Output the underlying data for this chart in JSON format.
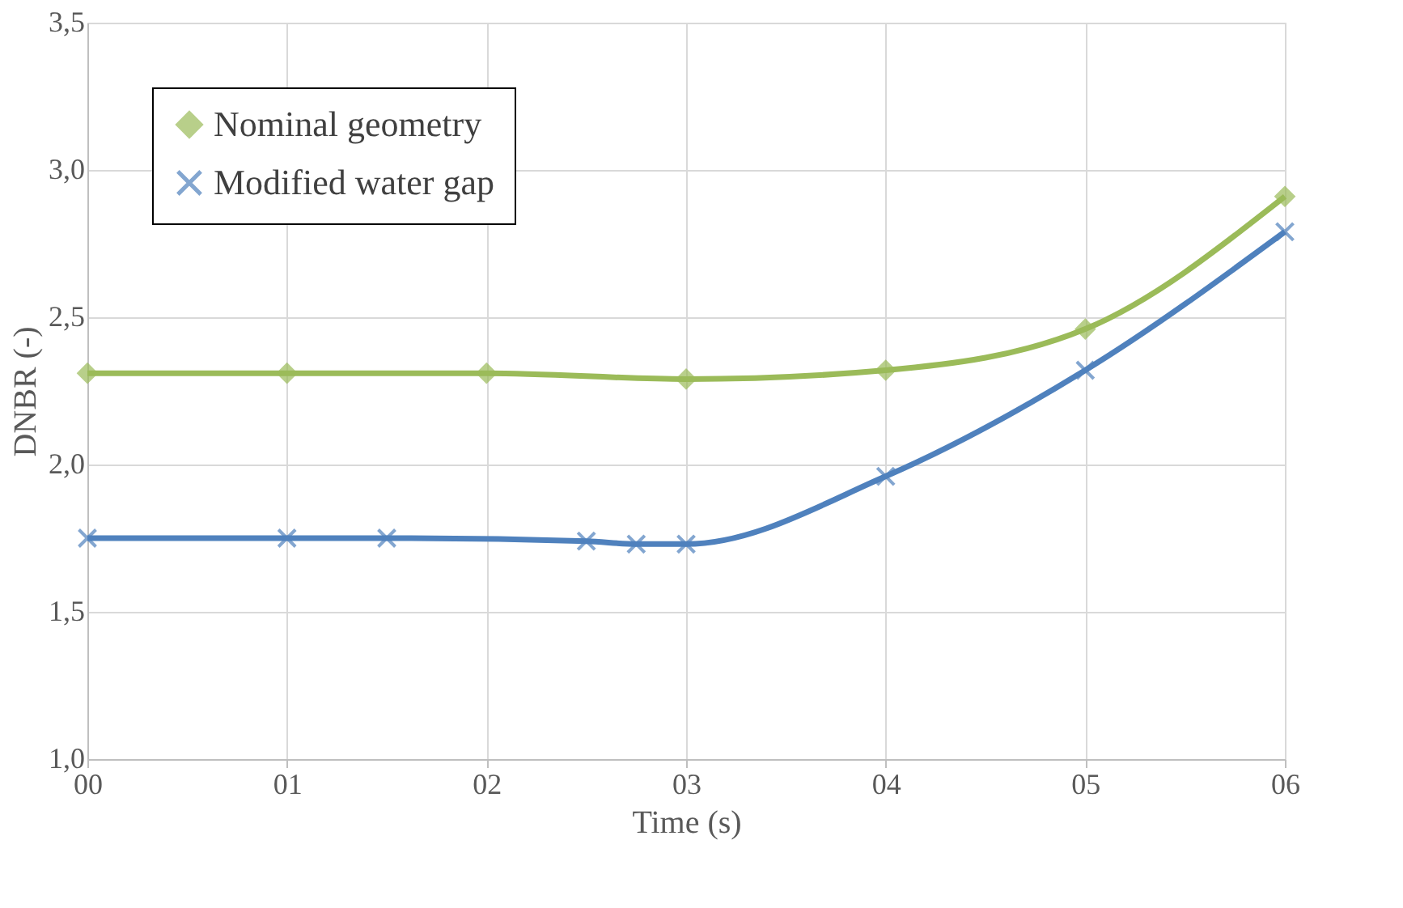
{
  "chart_data": {
    "type": "line",
    "xlabel": "Time (s)",
    "ylabel": "DNBR (-)",
    "xlim": [
      0,
      6
    ],
    "xticks": [
      {
        "value": 0,
        "label": "00"
      },
      {
        "value": 1,
        "label": "01"
      },
      {
        "value": 2,
        "label": "02"
      },
      {
        "value": 3,
        "label": "03"
      },
      {
        "value": 4,
        "label": "04"
      },
      {
        "value": 5,
        "label": "05"
      },
      {
        "value": 6,
        "label": "06"
      }
    ],
    "ylim": [
      1.0,
      3.5
    ],
    "yticks": [
      {
        "value": 1.0,
        "label": "1,0"
      },
      {
        "value": 1.5,
        "label": "1,5"
      },
      {
        "value": 2.0,
        "label": "2,0"
      },
      {
        "value": 2.5,
        "label": "2,5"
      },
      {
        "value": 3.0,
        "label": "3,0"
      },
      {
        "value": 3.5,
        "label": "3,5"
      }
    ],
    "grid": true,
    "legend": "top left",
    "line_style": "solid",
    "series": [
      {
        "name": "Nominal geometry",
        "color": "#9bbb59",
        "marker": "diamond",
        "x": [
          0,
          1,
          2,
          3,
          4,
          5,
          6
        ],
        "values": [
          2.31,
          2.31,
          2.31,
          2.29,
          2.32,
          2.46,
          2.91
        ]
      },
      {
        "name": "Modified water gap",
        "color": "#4f81bd",
        "marker": "cross",
        "x": [
          0,
          1,
          1.5,
          2.5,
          2.75,
          3,
          4,
          5,
          6
        ],
        "values": [
          1.75,
          1.75,
          1.75,
          1.74,
          1.73,
          1.73,
          1.96,
          2.32,
          2.79
        ]
      }
    ]
  }
}
